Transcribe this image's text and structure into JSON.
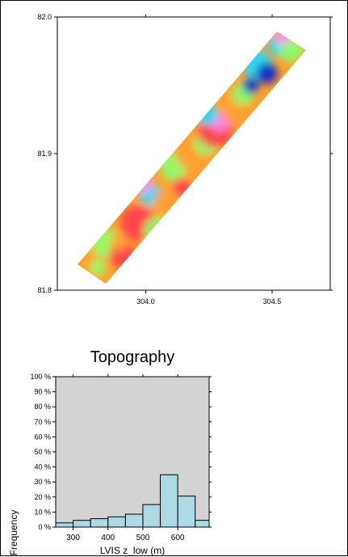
{
  "chart_data": [
    {
      "type": "heatmap",
      "title": "",
      "xlabel": "",
      "ylabel": "",
      "xlim": [
        303.65,
        304.73
      ],
      "ylim": [
        81.8,
        82.0
      ],
      "x_ticks": [
        "304.0",
        "304.5"
      ],
      "x_tick_values": [
        304.0,
        304.5
      ],
      "y_ticks": [
        "81.8",
        "81.9",
        "82.0"
      ],
      "y_tick_values": [
        81.8,
        81.9,
        82.0
      ],
      "grid": false,
      "colors": {
        "low": "#0a22c8",
        "mid_low": "#23d8ff",
        "mid": "#8cff6e",
        "mid_high": "#ffa030",
        "high": "#ff3c50",
        "peak": "#ff8cf0"
      }
    },
    {
      "type": "bar",
      "title": "Topography",
      "xlabel": "LVIS z_low (m)",
      "ylabel": "Frequency",
      "bin_edges": [
        250,
        300,
        350,
        400,
        450,
        500,
        550,
        600,
        650,
        700
      ],
      "values": [
        2.8,
        4.5,
        5.6,
        6.8,
        8.6,
        15.0,
        34.8,
        20.6,
        4.5
      ],
      "xlim": [
        250,
        690
      ],
      "ylim": [
        0,
        100
      ],
      "x_ticks": [
        "300",
        "400",
        "500",
        "600"
      ],
      "x_tick_values": [
        300,
        400,
        500,
        600
      ],
      "y_ticks": [
        "0 %",
        "10 %",
        "20 %",
        "30 %",
        "40 %",
        "50 %",
        "60 %",
        "70 %",
        "80 %",
        "90 %",
        "100 %"
      ],
      "y_tick_values": [
        0,
        10,
        20,
        30,
        40,
        50,
        60,
        70,
        80,
        90,
        100
      ],
      "bar_color": "#add8e6",
      "background_color": "#d3d3d3"
    }
  ]
}
